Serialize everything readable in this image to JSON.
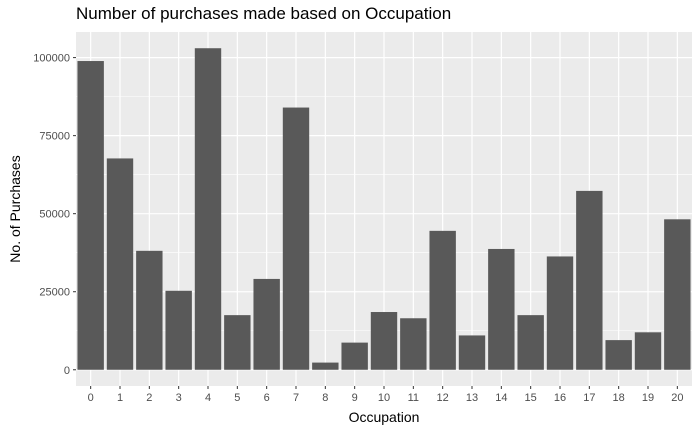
{
  "chart_data": {
    "type": "bar",
    "title": "Number of purchases made based on Occupation",
    "xlabel": "Occupation",
    "ylabel": "No. of Purchases",
    "categories": [
      "0",
      "1",
      "2",
      "3",
      "4",
      "5",
      "6",
      "7",
      "8",
      "9",
      "10",
      "11",
      "12",
      "13",
      "14",
      "15",
      "16",
      "17",
      "18",
      "19",
      "20"
    ],
    "values": [
      98900,
      67700,
      38100,
      25300,
      103000,
      17500,
      29100,
      84000,
      2300,
      8700,
      18500,
      16500,
      44500,
      11000,
      38700,
      17500,
      36300,
      57300,
      9500,
      12000,
      48200
    ],
    "y_ticks": [
      0,
      25000,
      50000,
      75000,
      100000
    ],
    "y_tick_labels": [
      "0",
      "25000",
      "50000",
      "75000",
      "100000"
    ],
    "ylim": [
      -5200,
      108200
    ],
    "grid": true,
    "colors": {
      "bar": "#595959",
      "panel": "#ebebeb",
      "grid_major": "#ffffff",
      "tick_text": "#4d4d4d"
    }
  }
}
